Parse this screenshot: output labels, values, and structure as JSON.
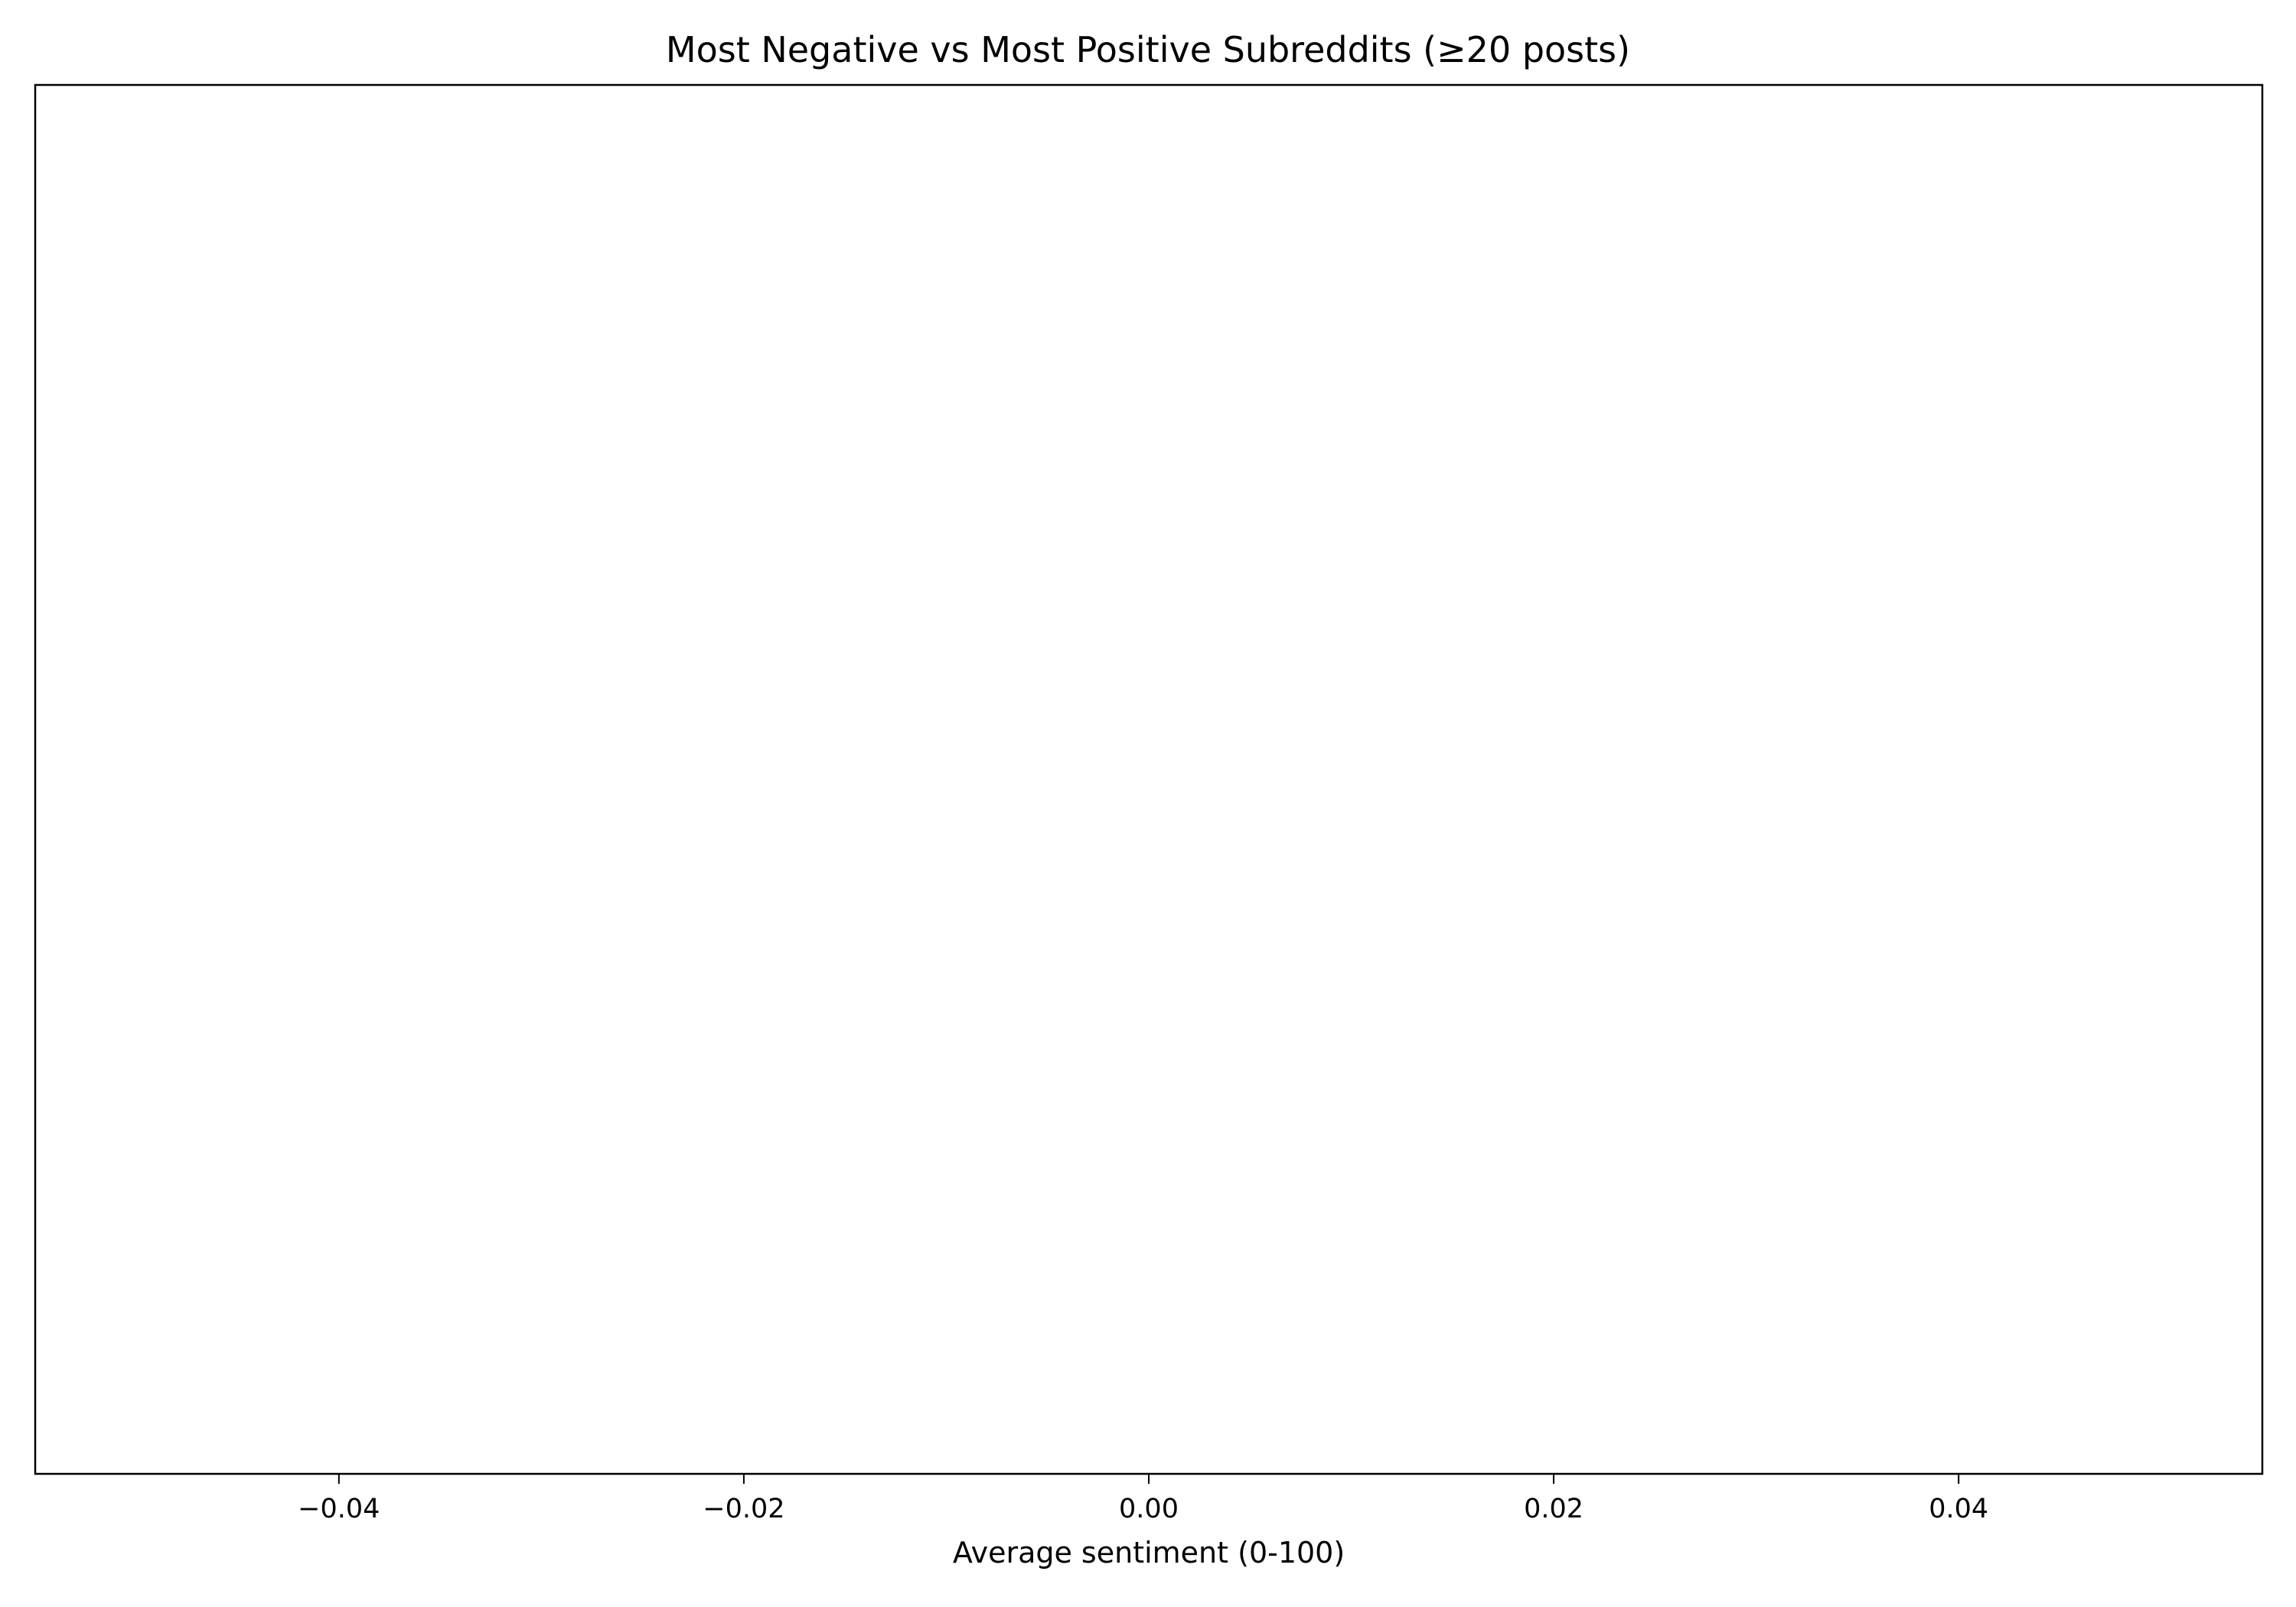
{
  "chart_data": {
    "type": "bar",
    "orientation": "horizontal",
    "title": "Most Negative vs Most Positive Subreddits (≥20 posts)",
    "xlabel": "Average sentiment (0-100)",
    "ylabel": "",
    "xlim": [
      -0.055,
      0.055
    ],
    "x_ticks": [
      -0.04,
      -0.02,
      0.0,
      0.02,
      0.04
    ],
    "x_tick_labels": [
      "−0.04",
      "−0.02",
      "0.00",
      "0.02",
      "0.04"
    ],
    "categories": [],
    "values": [],
    "grid": false,
    "legend": "none"
  }
}
